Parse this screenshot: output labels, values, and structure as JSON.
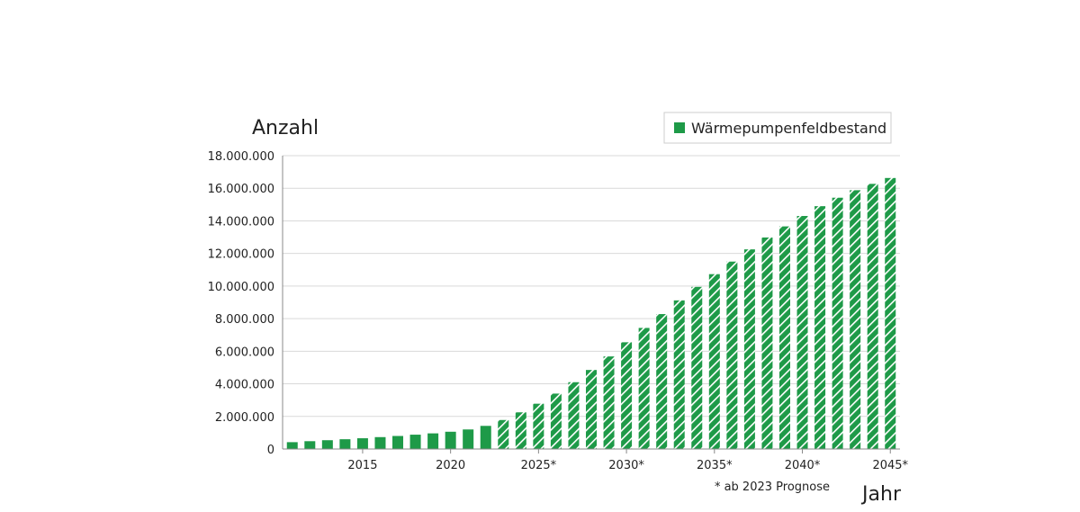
{
  "chart_data": {
    "type": "bar",
    "ylabel": "Anzahl",
    "xlabel": "Jahr",
    "note": "* ab 2023 Prognose",
    "forecast_from": 2023,
    "ylim": [
      0,
      18000000
    ],
    "ytick_values": [
      0,
      2000000,
      4000000,
      6000000,
      8000000,
      10000000,
      12000000,
      14000000,
      16000000,
      18000000
    ],
    "ytick_labels": [
      "0",
      "2.000.000",
      "4.000.000",
      "6.000.000",
      "8.000.000",
      "10.000.000",
      "12.000.000",
      "14.000.000",
      "16.000.000",
      "18.000.000"
    ],
    "xtick_labels": [
      {
        "year": 2015,
        "label": "2015"
      },
      {
        "year": 2020,
        "label": "2020"
      },
      {
        "year": 2025,
        "label": "2025*"
      },
      {
        "year": 2030,
        "label": "2030*"
      },
      {
        "year": 2035,
        "label": "2035*"
      },
      {
        "year": 2040,
        "label": "2040*"
      },
      {
        "year": 2045,
        "label": "2045*"
      }
    ],
    "grid": true,
    "legend_position": "top-right",
    "colors": {
      "bar": "#1e9a48",
      "stripe": "#ffffff",
      "grid": "#d9d9d9",
      "axis": "#888888"
    },
    "series": [
      {
        "name": "Wärmepumpenfeldbestand",
        "x": [
          2011,
          2012,
          2013,
          2014,
          2015,
          2016,
          2017,
          2018,
          2019,
          2020,
          2021,
          2022,
          2023,
          2024,
          2025,
          2026,
          2027,
          2028,
          2029,
          2030,
          2031,
          2032,
          2033,
          2034,
          2035,
          2036,
          2037,
          2038,
          2039,
          2040,
          2041,
          2042,
          2043,
          2044,
          2045
        ],
        "values": [
          420000,
          480000,
          540000,
          600000,
          660000,
          730000,
          800000,
          880000,
          960000,
          1060000,
          1200000,
          1420000,
          1780000,
          2250000,
          2780000,
          3400000,
          4100000,
          4850000,
          5680000,
          6550000,
          7430000,
          8280000,
          9120000,
          9950000,
          10730000,
          11500000,
          12250000,
          12980000,
          13660000,
          14300000,
          14900000,
          15420000,
          15880000,
          16270000,
          16630000
        ]
      }
    ]
  }
}
